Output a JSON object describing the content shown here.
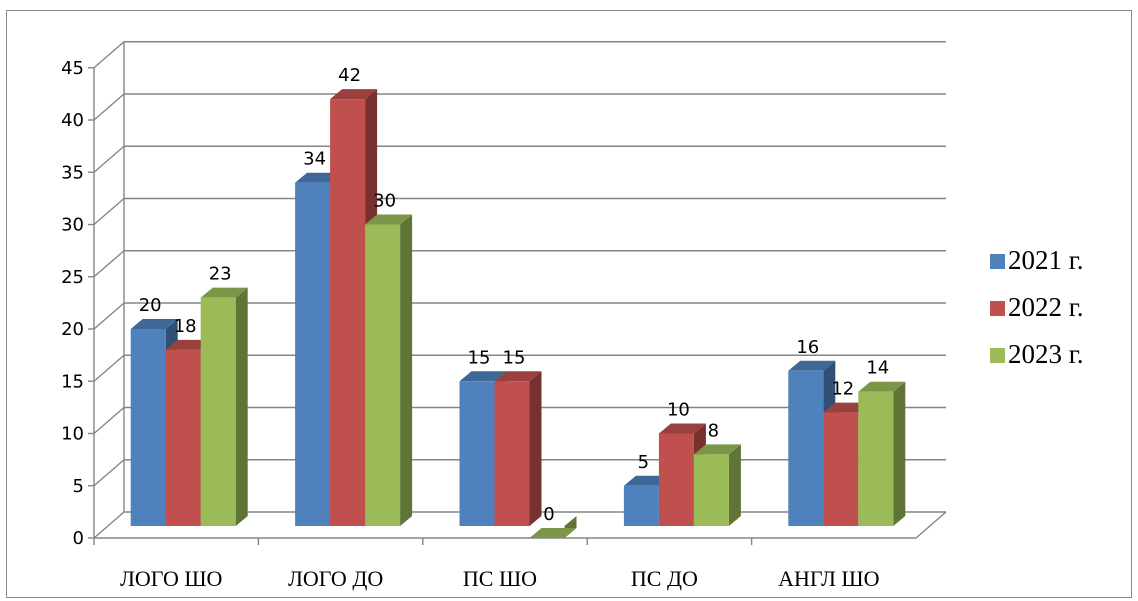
{
  "chart_data": {
    "type": "bar",
    "categories": [
      "ЛОГО ШО",
      "ЛОГО ДО",
      "ПС ШО",
      "ПС ДО",
      "АНГЛ ШО"
    ],
    "series": [
      {
        "name": "2021 г.",
        "color": "#4f81bd",
        "values": [
          20,
          34,
          15,
          5,
          16
        ]
      },
      {
        "name": "2022 г.",
        "color": "#c0504d",
        "values": [
          18,
          42,
          15,
          10,
          12
        ]
      },
      {
        "name": "2023 г.",
        "color": "#9bbb59",
        "values": [
          23,
          30,
          0,
          8,
          14
        ]
      }
    ],
    "yticks": [
      0,
      5,
      10,
      15,
      20,
      25,
      30,
      35,
      40,
      45
    ],
    "ylim": [
      0,
      45
    ],
    "grid": true,
    "legend": "right",
    "style": "3d-clustered-column"
  }
}
